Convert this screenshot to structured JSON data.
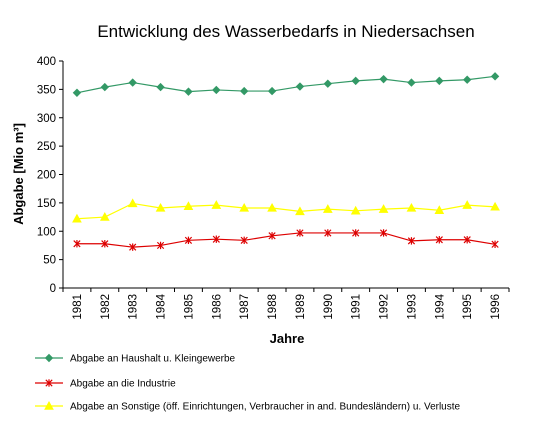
{
  "chart_data": {
    "type": "line",
    "title": "Entwicklung des Wasserbedarfs in Niedersachsen",
    "xlabel": "Jahre",
    "ylabel": "Abgabe [Mio m³]",
    "ylim": [
      0,
      400
    ],
    "yticks": [
      0,
      50,
      100,
      150,
      200,
      250,
      300,
      350,
      400
    ],
    "grid": false,
    "legend_position": "bottom",
    "categories": [
      "1981",
      "1982",
      "1983",
      "1984",
      "1985",
      "1986",
      "1987",
      "1988",
      "1989",
      "1990",
      "1991",
      "1992",
      "1993",
      "1994",
      "1995",
      "1996"
    ],
    "series": [
      {
        "name": "Abgabe an Haushalt u. Kleingewerbe",
        "color": "#339966",
        "marker": "diamond",
        "values": [
          344,
          354,
          362,
          354,
          346,
          349,
          347,
          347,
          355,
          360,
          365,
          368,
          362,
          365,
          367,
          373
        ]
      },
      {
        "name": "Abgabe an die Industrie",
        "color": "#dd0000",
        "marker": "asterisk",
        "values": [
          78,
          78,
          72,
          75,
          84,
          86,
          84,
          92,
          97,
          97,
          97,
          97,
          83,
          85,
          85,
          77
        ]
      },
      {
        "name": "Abgabe an Sonstige (öff. Einrichtungen, Verbraucher in and. Bundesländern) u. Verluste",
        "color": "#ffff00",
        "marker": "triangle",
        "values": [
          122,
          125,
          149,
          141,
          144,
          146,
          141,
          141,
          135,
          139,
          136,
          139,
          141,
          137,
          146,
          143
        ]
      }
    ]
  }
}
